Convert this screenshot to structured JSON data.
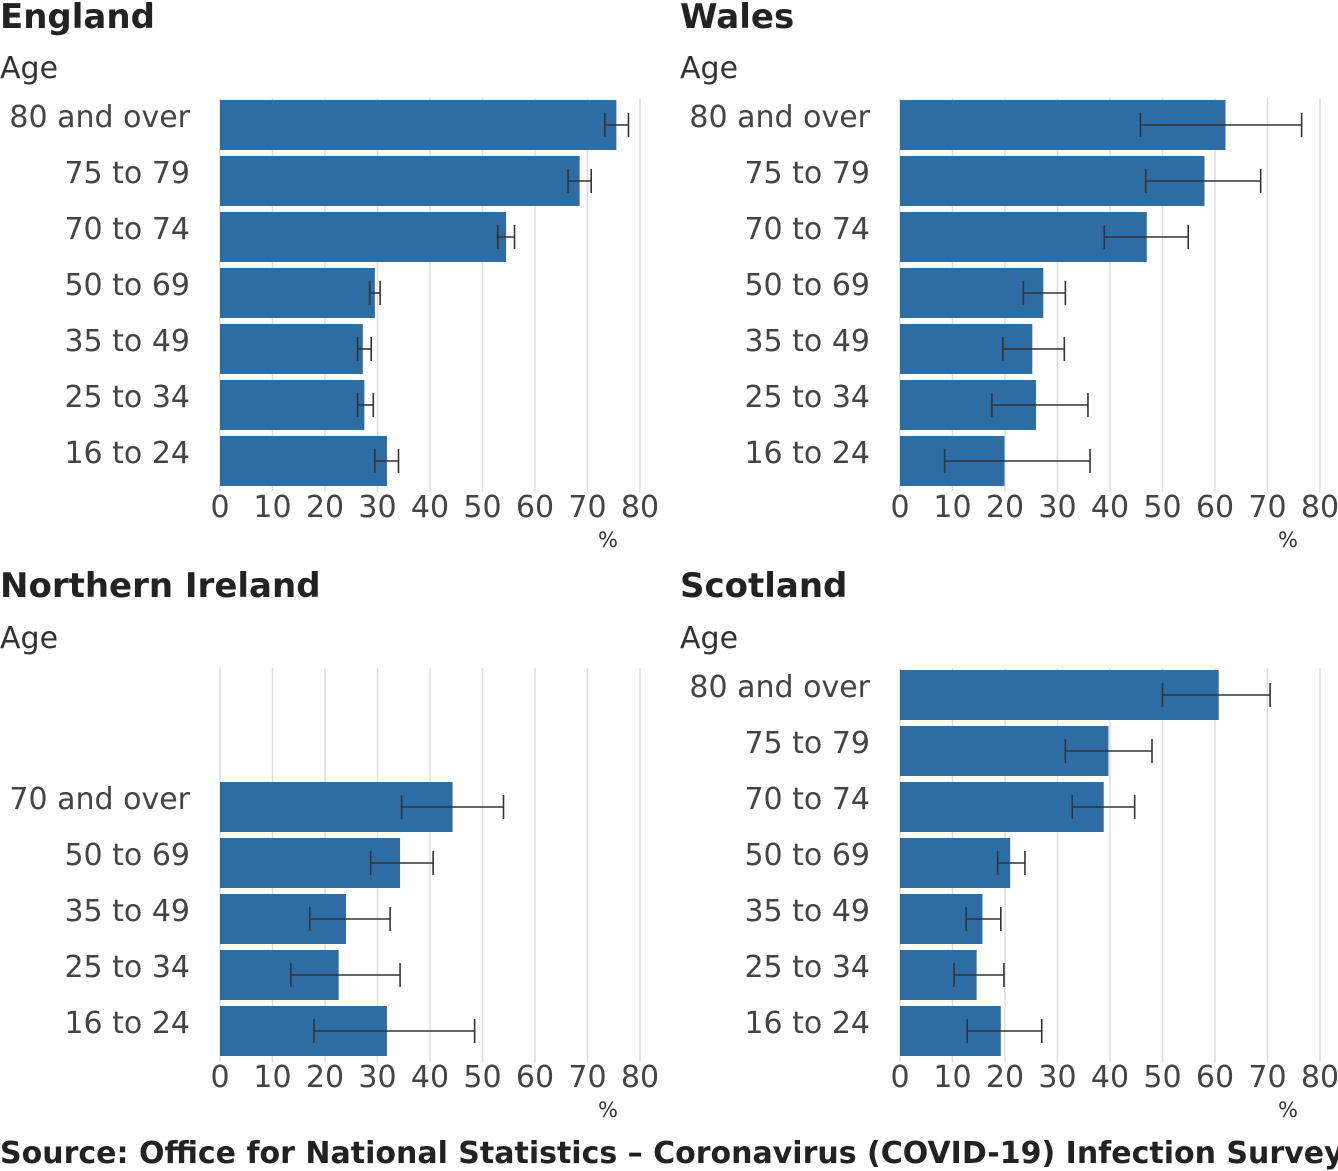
{
  "source": "Source: Office for National Statistics – Coronavirus (COVID-19) Infection Survey",
  "colors": {
    "bar": "#2e6da4",
    "error": "#333333",
    "grid": "#dddddd"
  },
  "chart_data": [
    {
      "type": "bar",
      "orientation": "horizontal",
      "title": "England",
      "ylabel": "Age",
      "xlabel": "%",
      "xlim": [
        0,
        80
      ],
      "xticks": [
        "0",
        "10",
        "20",
        "30",
        "40",
        "50",
        "60",
        "70",
        "80"
      ],
      "categories": [
        "80 and over",
        "75 to 79",
        "70 to 74",
        "50 to 69",
        "35 to 49",
        "25 to 34",
        "16 to 24"
      ],
      "values": [
        75.5,
        68.5,
        54.5,
        29.5,
        27.2,
        27.5,
        31.8
      ],
      "lower": [
        73.3,
        66.3,
        52.9,
        28.5,
        26.2,
        26.2,
        29.5
      ],
      "upper": [
        77.8,
        70.7,
        56.1,
        30.5,
        28.8,
        29.2,
        34.0
      ]
    },
    {
      "type": "bar",
      "orientation": "horizontal",
      "title": "Wales",
      "ylabel": "Age",
      "xlabel": "%",
      "xlim": [
        0,
        80
      ],
      "xticks": [
        "0",
        "10",
        "20",
        "30",
        "40",
        "50",
        "60",
        "70",
        "80"
      ],
      "categories": [
        "80 and over",
        "75 to 79",
        "70 to 74",
        "50 to 69",
        "35 to 49",
        "25 to 34",
        "16 to 24"
      ],
      "values": [
        62.0,
        58.0,
        47.0,
        27.3,
        25.2,
        25.9,
        19.9
      ],
      "lower": [
        45.8,
        46.8,
        38.9,
        23.5,
        19.6,
        17.5,
        8.5
      ],
      "upper": [
        76.5,
        68.7,
        54.9,
        31.5,
        31.3,
        35.8,
        36.2
      ]
    },
    {
      "type": "bar",
      "orientation": "horizontal",
      "title": "Northern Ireland",
      "ylabel": "Age",
      "xlabel": "%",
      "xlim": [
        0,
        80
      ],
      "xticks": [
        "0",
        "10",
        "20",
        "30",
        "40",
        "50",
        "60",
        "70",
        "80"
      ],
      "categories": [
        "",
        "",
        "70 and over",
        "50 to 69",
        "35 to 49",
        "25 to 34",
        "16 to 24"
      ],
      "values": [
        null,
        null,
        44.3,
        34.3,
        24.0,
        22.6,
        31.8
      ],
      "lower": [
        null,
        null,
        34.6,
        28.7,
        17.1,
        13.5,
        17.9
      ],
      "upper": [
        null,
        null,
        54.0,
        40.6,
        32.4,
        34.3,
        48.5
      ]
    },
    {
      "type": "bar",
      "orientation": "horizontal",
      "title": "Scotland",
      "ylabel": "Age",
      "xlabel": "%",
      "xlim": [
        0,
        80
      ],
      "xticks": [
        "0",
        "10",
        "20",
        "30",
        "40",
        "50",
        "60",
        "70",
        "80"
      ],
      "categories": [
        "80 and over",
        "75 to 79",
        "70 to 74",
        "50 to 69",
        "35 to 49",
        "25 to 34",
        "16 to 24"
      ],
      "values": [
        60.7,
        39.7,
        38.8,
        21.0,
        15.7,
        14.6,
        19.2
      ],
      "lower": [
        50.0,
        31.5,
        32.8,
        18.6,
        12.6,
        10.3,
        12.8
      ],
      "upper": [
        70.5,
        48.0,
        44.7,
        23.8,
        19.2,
        19.8,
        27.0
      ]
    }
  ]
}
